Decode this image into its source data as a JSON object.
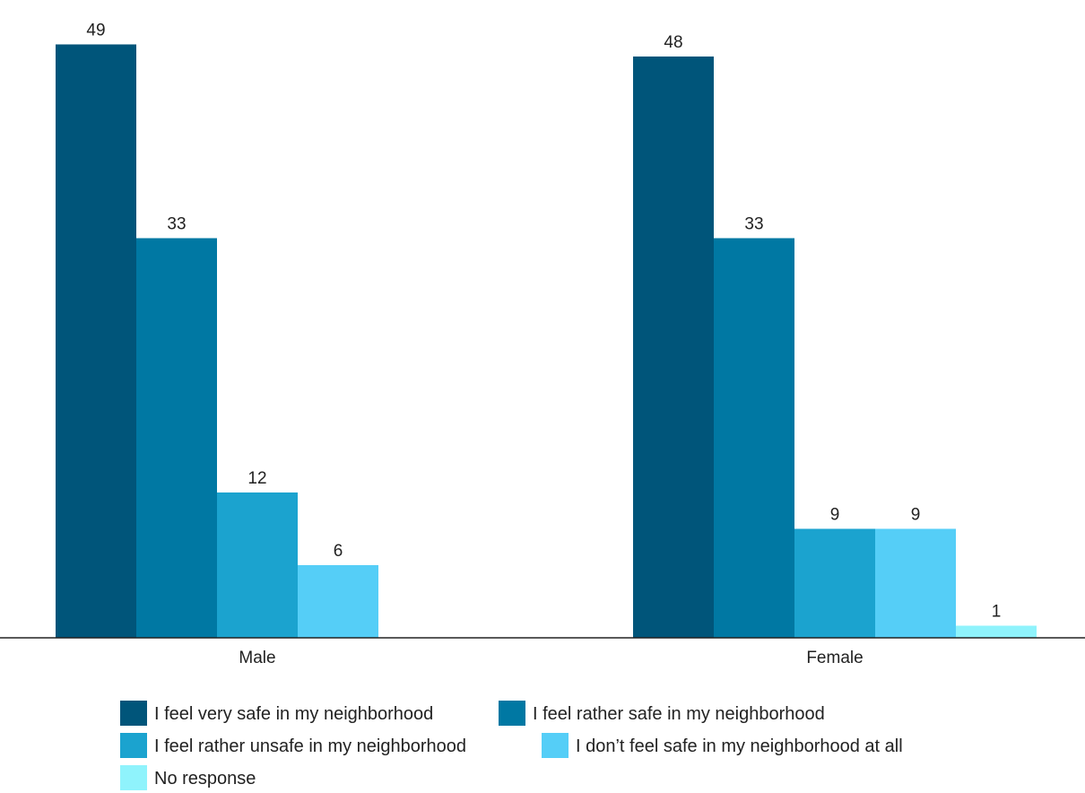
{
  "chart_data": {
    "type": "bar",
    "categories": [
      "Male",
      "Female"
    ],
    "series": [
      {
        "name": "I feel very safe in my neighborhood",
        "color": "#00557a",
        "values": [
          49,
          48
        ]
      },
      {
        "name": "I feel rather safe in my neighborhood",
        "color": "#0078a3",
        "values": [
          33,
          33
        ]
      },
      {
        "name": "I feel rather unsafe in my neighborhood",
        "color": "#1ba3cf",
        "values": [
          12,
          9
        ]
      },
      {
        "name": "I don’t feel safe in my neighborhood at all",
        "color": "#55cef7",
        "values": [
          6,
          9
        ]
      },
      {
        "name": "No response",
        "color": "#8ff3fc",
        "values": [
          null,
          1
        ]
      }
    ],
    "title": "",
    "xlabel": "",
    "ylabel": "",
    "ylim": [
      0,
      51.5
    ],
    "grid": false,
    "legend_position": "bottom"
  }
}
